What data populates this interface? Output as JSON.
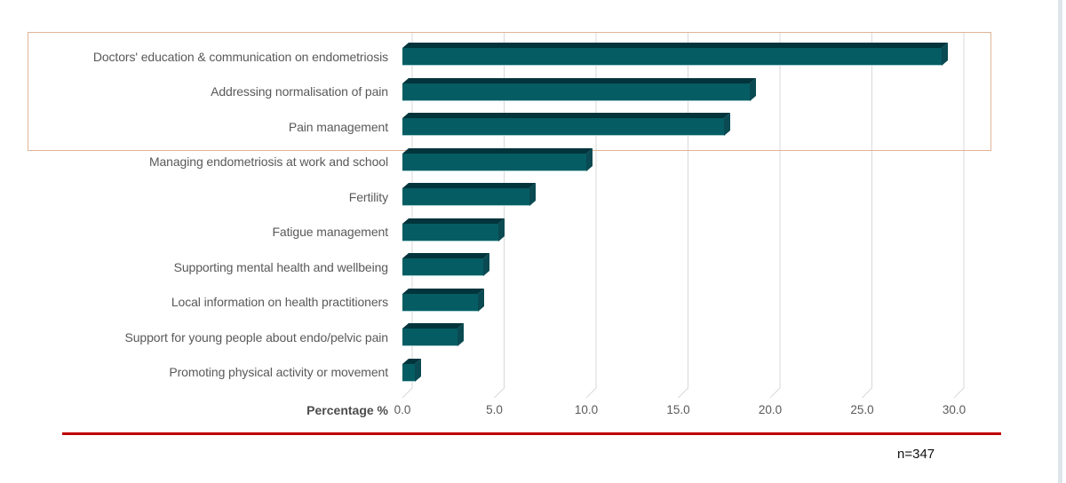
{
  "chart_data": {
    "type": "bar",
    "orientation": "horizontal",
    "title": "",
    "xlabel": "Percentage %",
    "ylabel": "",
    "xlim": [
      0,
      30
    ],
    "x_ticks": [
      "0.0",
      "5.0",
      "10.0",
      "15.0",
      "20.0",
      "25.0",
      "30.0"
    ],
    "grid": true,
    "legend": false,
    "categories": [
      "Doctors' education & communication on endometriosis",
      "Addressing normalisation of pain",
      "Pain management",
      "Managing endometriosis at work and school",
      "Fertility",
      "Fatigue management",
      "Supporting mental health and wellbeing",
      "Local information on health practitioners",
      "Support for young people about endo/pelvic pain",
      "Promoting physical activity or movement"
    ],
    "values": [
      29.3,
      18.9,
      17.5,
      10.0,
      6.9,
      5.2,
      4.4,
      4.1,
      3.0,
      0.7
    ],
    "colors": {
      "bar_body": "#055d63",
      "bar_top_face": "#02343c",
      "bar_end_face": "#0a4a52",
      "bar_bottom_highlight": "#a8ced1",
      "gridline": "#d9d9d9",
      "label_text": "#595959"
    }
  },
  "annotations": {
    "sample_size": "n=347",
    "highlight_box_color": "#e2b496",
    "divider_color": "#c00000"
  }
}
